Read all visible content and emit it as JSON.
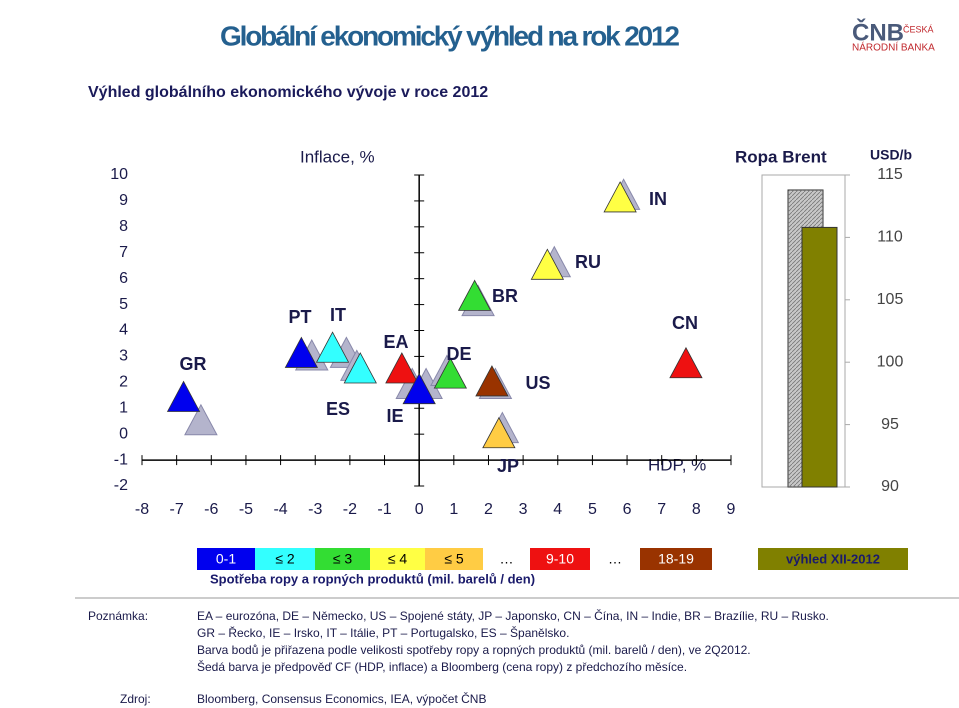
{
  "header": {
    "title": "Globální ekonomický výhled na rok 2012",
    "subtitle": "Výhled globálního ekonomického vývoje v roce 2012"
  },
  "logo": {
    "name": "ČNB",
    "line1": "ČESKÁ",
    "line2": "NÁRODNÍ BANKA"
  },
  "chart_data": [
    {
      "type": "scatter",
      "title": "Inflace, %",
      "x_label": "HDP, %",
      "xlim": [
        -8,
        9
      ],
      "xticks": [
        -8,
        -7,
        -6,
        -5,
        -4,
        -3,
        -2,
        -1,
        0,
        1,
        2,
        3,
        4,
        5,
        6,
        7,
        8,
        9
      ],
      "ylim": [
        -2,
        10
      ],
      "yticks": [
        -2,
        -1,
        0,
        1,
        2,
        3,
        4,
        5,
        6,
        7,
        8,
        9,
        10
      ],
      "x_axis_position": -1,
      "y_axis_position": 0,
      "previous_color": "#b4b4cc",
      "points": [
        {
          "label": "GR",
          "color": "#0000ee",
          "x": -6.8,
          "y": 1.3,
          "prev_x": -6.3,
          "prev_y": 0.4
        },
        {
          "label": "PT",
          "color": "#0000ee",
          "x": -3.4,
          "y": 3.0,
          "prev_x": -3.1,
          "prev_y": 2.9
        },
        {
          "label": "IT",
          "color": "#33ffff",
          "x": -2.5,
          "y": 3.2,
          "prev_x": -2.1,
          "prev_y": 3.0
        },
        {
          "label": "ES",
          "color": "#33ffff",
          "x": -1.7,
          "y": 2.4,
          "prev_x": -1.8,
          "prev_y": 2.5
        },
        {
          "label": "EA",
          "color": "#ee1111",
          "x": -0.5,
          "y": 2.4,
          "prev_x": 0.2,
          "prev_y": 1.8
        },
        {
          "label": "IE",
          "color": "#0000ee",
          "x": 0.0,
          "y": 1.6,
          "prev_x": -0.2,
          "prev_y": 1.8
        },
        {
          "label": "DE",
          "color": "#33dd33",
          "x": 0.9,
          "y": 2.2,
          "prev_x": 0.8,
          "prev_y": 2.3
        },
        {
          "label": "BR",
          "color": "#33dd33",
          "x": 1.6,
          "y": 5.2,
          "prev_x": 1.7,
          "prev_y": 5.0
        },
        {
          "label": "US",
          "color": "#993300",
          "x": 2.1,
          "y": 1.9,
          "prev_x": 2.2,
          "prev_y": 1.8
        },
        {
          "label": "JP",
          "color": "#ffcc44",
          "x": 2.3,
          "y": -0.1,
          "prev_x": 2.4,
          "prev_y": 0.1
        },
        {
          "label": "RU",
          "color": "#ffff44",
          "x": 3.7,
          "y": 6.4,
          "prev_x": 3.9,
          "prev_y": 6.5
        },
        {
          "label": "IN",
          "color": "#ffff44",
          "x": 5.8,
          "y": 9.0,
          "prev_x": 5.9,
          "prev_y": 9.1
        },
        {
          "label": "CN",
          "color": "#ee1111",
          "x": 7.7,
          "y": 2.6,
          "prev_x": null,
          "prev_y": null
        }
      ]
    },
    {
      "type": "bar",
      "title": "Ropa Brent",
      "y_label": "USD/b",
      "ylim": [
        90,
        115
      ],
      "yticks": [
        90,
        95,
        100,
        105,
        110,
        115
      ],
      "values": [
        113.8,
        110.8
      ],
      "colors": [
        "#c8c8c8",
        "#808000"
      ]
    }
  ],
  "legend": {
    "title": "Spotřeba ropy a ropných produktů (mil. barelů / den)",
    "items": [
      {
        "label": "0-1",
        "color": "#0000ee"
      },
      {
        "label": "≤ 2",
        "color": "#33ffff"
      },
      {
        "label": "≤ 3",
        "color": "#33dd33"
      },
      {
        "label": "≤ 4",
        "color": "#ffff44"
      },
      {
        "label": "≤ 5",
        "color": "#ffcc44"
      },
      {
        "label": "…",
        "color": "#ffffff"
      },
      {
        "label": "9-10",
        "color": "#ee1111"
      },
      {
        "label": "…",
        "color": "#ffffff"
      },
      {
        "label": "18-19",
        "color": "#993300"
      }
    ],
    "forecast": {
      "label": "výhled XII-2012",
      "color": "#808000"
    }
  },
  "notes": {
    "label": "Poznámka:",
    "lines": [
      "EA – eurozóna, DE – Německo, US – Spojené státy, JP – Japonsko, CN – Čína, IN – Indie, BR – Brazílie, RU – Rusko.",
      "GR – Řecko, IE – Irsko, IT – Itálie, PT – Portugalsko, ES – Španělsko.",
      "Barva bodů je přiřazena podle velikosti spotřeby ropy a ropných produktů (mil. barelů / den), ve 2Q2012.",
      "Šedá barva je předpověď CF (HDP, inflace) a Bloomberg (cena ropy) z předchozího měsíce."
    ]
  },
  "source": {
    "label": "Zdroj:",
    "text": "Bloomberg, Consensus Economics, IEA, výpočet ČNB"
  }
}
